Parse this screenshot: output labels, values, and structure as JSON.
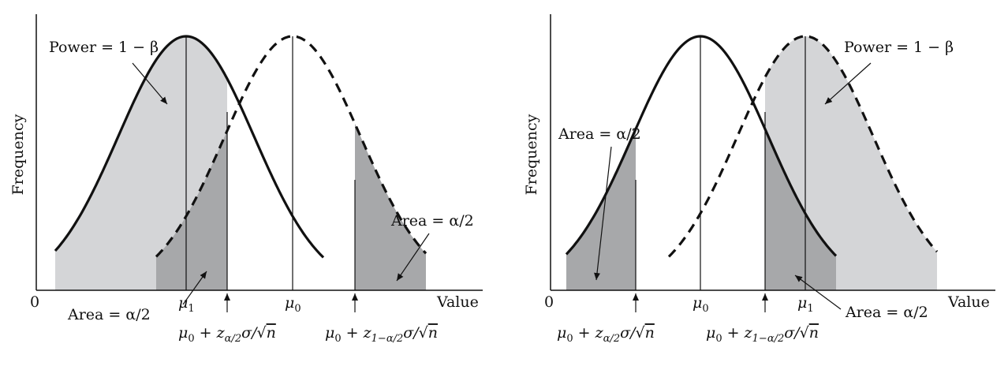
{
  "panels": [
    {
      "id": "left",
      "ylabel": "Frequency",
      "xlabel": "Value",
      "origin": "0",
      "power_label": "Power = 1 − β",
      "area_label_a": "Area = α/2",
      "area_label_b": "Area = α/2",
      "mu1": "μ",
      "mu1_sub": "1",
      "mu0": "μ",
      "mu0_sub": "0",
      "crit_low": {
        "mu": "μ",
        "mu_sub": "0",
        "mid": " + z",
        "z_sub": "α/2",
        "sigma": "σ/√",
        "n": "n"
      },
      "crit_high": {
        "mu": "μ",
        "mu_sub": "0",
        "mid": " + z",
        "z_sub": "1−α/2",
        "sigma": "σ/√",
        "n": "n"
      }
    },
    {
      "id": "right",
      "ylabel": "Frequency",
      "xlabel": "Value",
      "origin": "0",
      "power_label": "Power = 1 − β",
      "area_label_a": "Area = α/2",
      "area_label_b": "Area = α/2",
      "mu1": "μ",
      "mu1_sub": "1",
      "mu0": "μ",
      "mu0_sub": "0",
      "crit_low": {
        "mu": "μ",
        "mu_sub": "0",
        "mid": " + z",
        "z_sub": "α/2",
        "sigma": "σ/√",
        "n": "n"
      },
      "crit_high": {
        "mu": "μ",
        "mu_sub": "0",
        "mid": " + z",
        "z_sub": "1−α/2",
        "sigma": "σ/√",
        "n": "n"
      }
    }
  ],
  "colors": {
    "power_fill": "#d4d5d7",
    "tail_fill": "#a7a8aa",
    "curve": "#111111"
  }
}
